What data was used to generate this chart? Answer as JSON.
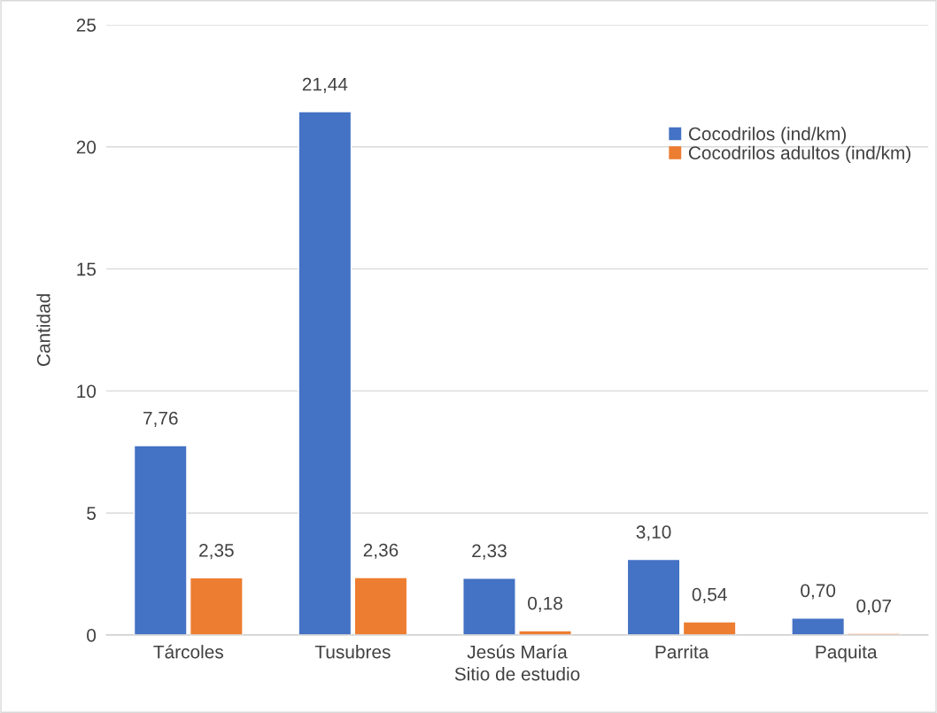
{
  "chart_data": {
    "type": "bar",
    "xlabel": "Sitio de estudio",
    "ylabel": "Cantidad",
    "categories": [
      "Tárcoles",
      "Tusubres",
      "Jesús María",
      "Parrita",
      "Paquita"
    ],
    "series": [
      {
        "name": "Cocodrilos (ind/km)",
        "color": "#4472c4",
        "values": [
          7.76,
          21.44,
          2.33,
          3.1,
          0.7
        ],
        "value_labels": [
          "7,76",
          "21,44",
          "2,33",
          "3,10",
          "0,70"
        ]
      },
      {
        "name": "Cocodrilos adultos (ind/km)",
        "color": "#ed7d31",
        "values": [
          2.35,
          2.36,
          0.18,
          0.54,
          0.07
        ],
        "value_labels": [
          "2,35",
          "2,36",
          "0,18",
          "0,54",
          "0,07"
        ]
      }
    ],
    "ylim": [
      0,
      25
    ],
    "yticks": [
      0,
      5,
      10,
      15,
      20,
      25
    ],
    "grid": "y",
    "legend": "top right"
  }
}
